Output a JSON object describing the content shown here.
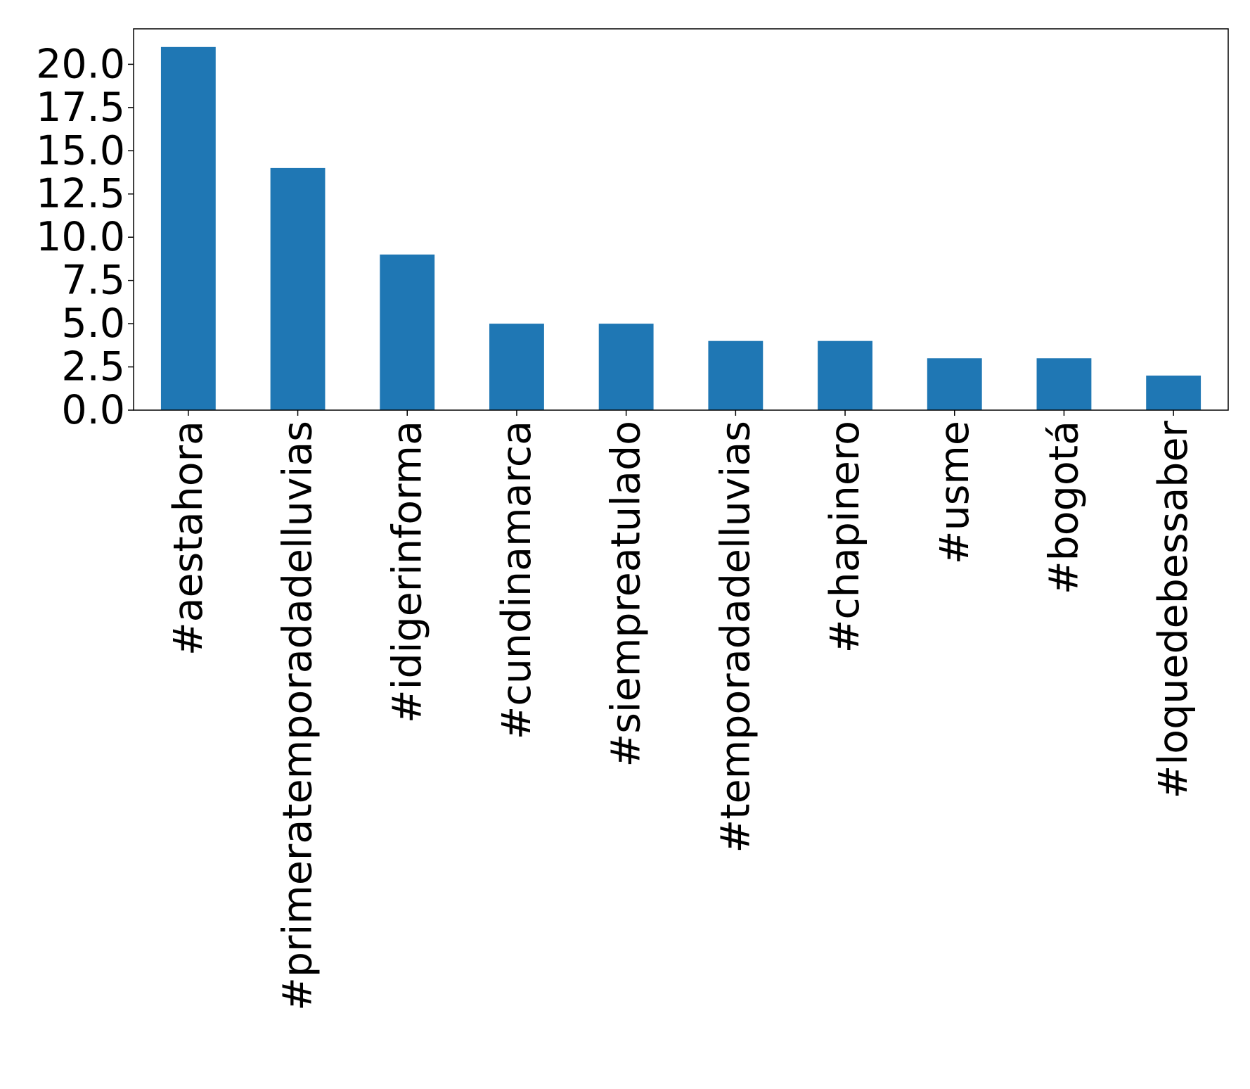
{
  "chart_data": {
    "type": "bar",
    "title": "",
    "xlabel": "",
    "ylabel": "",
    "categories": [
      "#aestahora",
      "#primeratemporadadelluvias",
      "#idigerinforma",
      "#cundinamarca",
      "#siempreatulado",
      "#temporadadelluvias",
      "#chapinero",
      "#usme",
      "#bogotá",
      "#loquedebessaber"
    ],
    "values": [
      21,
      14,
      9,
      5,
      5,
      4,
      4,
      3,
      3,
      2
    ],
    "ylim": [
      0,
      22.05
    ],
    "yticks": [
      0.0,
      2.5,
      5.0,
      7.5,
      10.0,
      12.5,
      15.0,
      17.5,
      20.0
    ],
    "ytick_labels": [
      "0.0",
      "2.5",
      "5.0",
      "7.5",
      "10.0",
      "12.5",
      "15.0",
      "17.5",
      "20.0"
    ],
    "bar_color": "#1f77b4",
    "grid": false,
    "legend": "none"
  }
}
